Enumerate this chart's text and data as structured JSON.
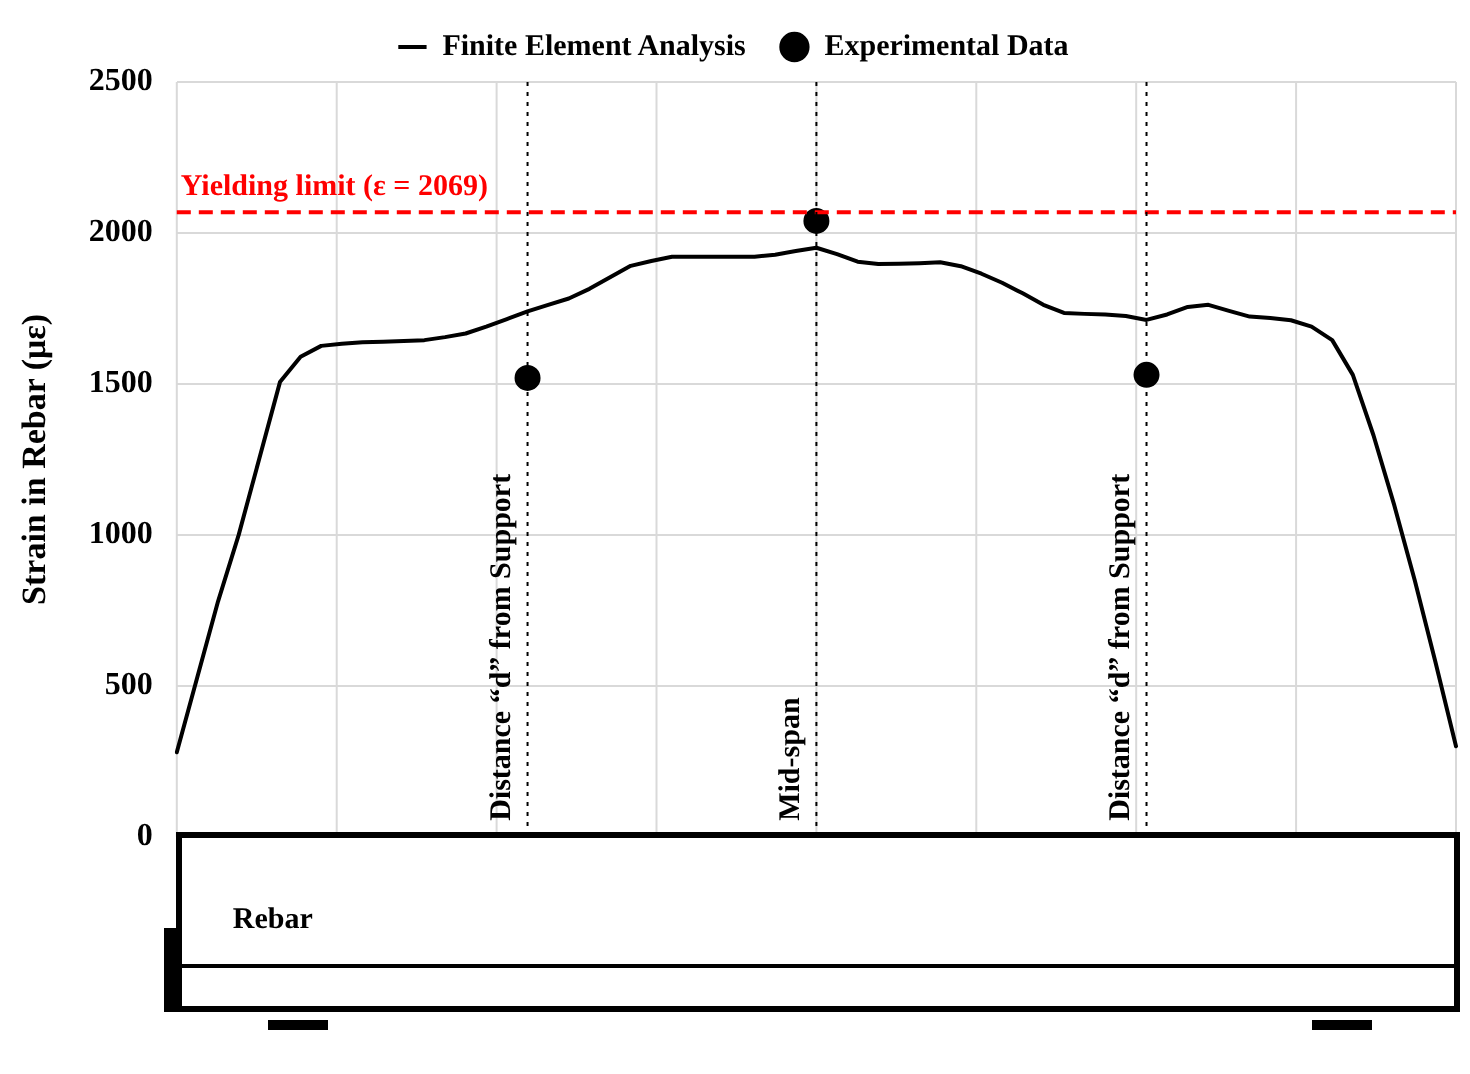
{
  "chart_data": {
    "type": "line",
    "ylabel": "Strain in Rebar (με)",
    "legend": "top",
    "grid": true,
    "tick_labels": "y",
    "categories": [
      null,
      null,
      null,
      null,
      null,
      null,
      null,
      null,
      null,
      null,
      null,
      null,
      null,
      null,
      null,
      null,
      null,
      null,
      null,
      null,
      null,
      null,
      null,
      null,
      null,
      null,
      null,
      null,
      null,
      null,
      null,
      null,
      null,
      null,
      null,
      null,
      null,
      null,
      null,
      null,
      null,
      null,
      null,
      null,
      null,
      null,
      null,
      null,
      null,
      null,
      null,
      null,
      null,
      null,
      null,
      null,
      null,
      null,
      null,
      null,
      null,
      null,
      null
    ],
    "ylim": [
      0,
      2500
    ],
    "yticks": [
      0,
      500,
      1000,
      1500,
      2000,
      2500
    ],
    "series": [
      {
        "name": "Finite Element Analysis",
        "color": "#000000",
        "marker": "none",
        "line_style": "solid",
        "values": [
          280,
          530,
          780,
          1000,
          1253,
          1506,
          1590,
          1626,
          1633,
          1638,
          1640,
          1642,
          1645,
          1655,
          1667,
          1690,
          1715,
          1740,
          1762,
          1783,
          1815,
          1853,
          1891,
          1907,
          1921,
          1921,
          1921,
          1921,
          1921,
          1928,
          1940,
          1951,
          1930,
          1905,
          1897,
          1898,
          1900,
          1903,
          1890,
          1865,
          1835,
          1800,
          1762,
          1735,
          1732,
          1730,
          1725,
          1712,
          1730,
          1755,
          1762,
          1742,
          1723,
          1718,
          1711,
          1690,
          1645,
          1530,
          1330,
          1100,
          850,
          580,
          300
        ]
      },
      {
        "name": "Experimental Data",
        "type": "scatter",
        "color": "#000000",
        "marker": "circle",
        "values": [
          null,
          null,
          null,
          null,
          null,
          null,
          null,
          null,
          null,
          null,
          null,
          null,
          null,
          null,
          null,
          null,
          null,
          1520,
          null,
          null,
          null,
          null,
          null,
          null,
          null,
          null,
          null,
          null,
          null,
          null,
          null,
          2040,
          null,
          null,
          null,
          null,
          null,
          null,
          null,
          null,
          null,
          null,
          null,
          null,
          null,
          null,
          null,
          1530,
          null,
          null,
          null,
          null,
          null,
          null,
          null,
          null,
          null,
          null,
          null,
          null,
          null,
          null,
          null
        ]
      }
    ],
    "ref_lines": [
      {
        "axis": "y",
        "value": 2069,
        "label": "Yielding limit (ε = 2069)",
        "color": "#ff0000",
        "line_style": "dashed"
      }
    ],
    "annotations": [
      "Distance “d” from Support",
      "Mid-span",
      "Distance “d” from Support",
      "Rebar"
    ]
  }
}
